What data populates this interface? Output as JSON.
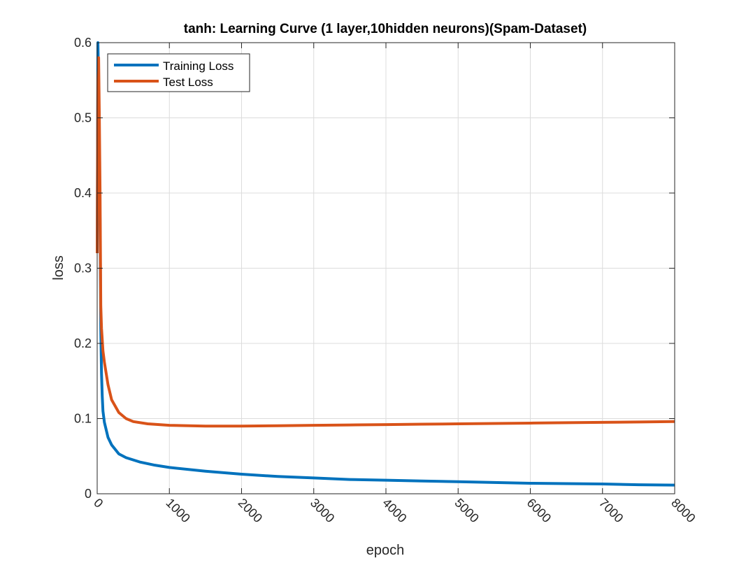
{
  "chart_data": {
    "type": "line",
    "title": "tanh: Learning Curve (1 layer,10hidden neurons)(Spam-Dataset)",
    "xlabel": "epoch",
    "ylabel": "loss",
    "xlim": [
      0,
      8000
    ],
    "ylim": [
      0,
      0.6
    ],
    "xticks": [
      0,
      1000,
      2000,
      3000,
      4000,
      5000,
      6000,
      7000,
      8000
    ],
    "xtick_labels": [
      "0",
      "1000",
      "2000",
      "3000",
      "4000",
      "5000",
      "6000",
      "7000",
      "8000"
    ],
    "yticks": [
      0,
      0.1,
      0.2,
      0.3,
      0.4,
      0.5,
      0.6
    ],
    "ytick_labels": [
      "0",
      "0.1",
      "0.2",
      "0.3",
      "0.4",
      "0.5",
      "0.6"
    ],
    "grid": true,
    "legend_position": "top-left",
    "series": [
      {
        "name": "Training Loss",
        "color": "#0072BD",
        "points": [
          [
            0,
            0.32
          ],
          [
            10,
            0.6
          ],
          [
            20,
            0.55
          ],
          [
            30,
            0.45
          ],
          [
            40,
            0.36
          ],
          [
            50,
            0.22
          ],
          [
            60,
            0.16
          ],
          [
            70,
            0.13
          ],
          [
            80,
            0.11
          ],
          [
            100,
            0.095
          ],
          [
            150,
            0.075
          ],
          [
            200,
            0.065
          ],
          [
            300,
            0.053
          ],
          [
            400,
            0.048
          ],
          [
            500,
            0.045
          ],
          [
            600,
            0.042
          ],
          [
            800,
            0.038
          ],
          [
            1000,
            0.035
          ],
          [
            1500,
            0.03
          ],
          [
            2000,
            0.026
          ],
          [
            2500,
            0.023
          ],
          [
            3000,
            0.021
          ],
          [
            3500,
            0.019
          ],
          [
            4000,
            0.018
          ],
          [
            4500,
            0.017
          ],
          [
            5000,
            0.016
          ],
          [
            5500,
            0.015
          ],
          [
            6000,
            0.014
          ],
          [
            6500,
            0.0135
          ],
          [
            7000,
            0.013
          ],
          [
            7500,
            0.012
          ],
          [
            8000,
            0.0115
          ]
        ]
      },
      {
        "name": "Test Loss",
        "color": "#D95319",
        "points": [
          [
            0,
            0.32
          ],
          [
            10,
            0.55
          ],
          [
            20,
            0.58
          ],
          [
            30,
            0.5
          ],
          [
            40,
            0.4
          ],
          [
            50,
            0.25
          ],
          [
            60,
            0.22
          ],
          [
            80,
            0.19
          ],
          [
            100,
            0.175
          ],
          [
            150,
            0.145
          ],
          [
            200,
            0.125
          ],
          [
            300,
            0.108
          ],
          [
            400,
            0.1
          ],
          [
            500,
            0.096
          ],
          [
            700,
            0.093
          ],
          [
            1000,
            0.091
          ],
          [
            1500,
            0.09
          ],
          [
            2000,
            0.09
          ],
          [
            2500,
            0.0905
          ],
          [
            3000,
            0.091
          ],
          [
            3500,
            0.0915
          ],
          [
            4000,
            0.092
          ],
          [
            4500,
            0.0925
          ],
          [
            5000,
            0.093
          ],
          [
            5500,
            0.0935
          ],
          [
            6000,
            0.094
          ],
          [
            6500,
            0.0945
          ],
          [
            7000,
            0.095
          ],
          [
            7500,
            0.0955
          ],
          [
            8000,
            0.096
          ]
        ]
      }
    ]
  }
}
